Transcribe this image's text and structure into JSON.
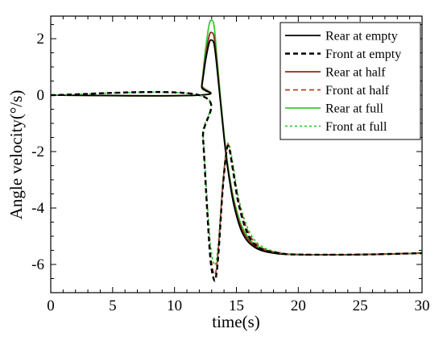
{
  "chart_data": {
    "type": "line",
    "title": "",
    "xlabel": "time(s)",
    "ylabel": "Angle velocity(°/s)",
    "xlim": [
      0,
      30
    ],
    "ylim": [
      -7,
      2.8
    ],
    "xticks": [
      "0",
      "5",
      "10",
      "15",
      "20",
      "25",
      "30"
    ],
    "yticks": [
      "2",
      "0",
      "-2",
      "-4",
      "-6"
    ],
    "legend_position": "top-right",
    "series": [
      {
        "name": "Rear at empty",
        "color": "#000000",
        "dash": "solid",
        "x": [
          0,
          12,
          12.2,
          12.5,
          12.8,
          13.0,
          13.2,
          13.4,
          13.7,
          14.0,
          14.3,
          14.8,
          15.5,
          16.5,
          18,
          20,
          25,
          30
        ],
        "y": [
          0,
          0,
          0.3,
          1.2,
          1.85,
          1.95,
          1.8,
          1.1,
          -0.2,
          -1.5,
          -2.6,
          -3.9,
          -4.9,
          -5.4,
          -5.6,
          -5.65,
          -5.65,
          -5.6
        ]
      },
      {
        "name": "Front at empty",
        "color": "#000000",
        "dash": "dashed",
        "x": [
          0,
          12,
          12.3,
          12.6,
          12.9,
          13.2,
          13.4,
          13.6,
          13.9,
          14.2,
          14.4,
          14.7,
          15.2,
          16,
          17,
          18.5,
          20,
          25,
          30
        ],
        "y": [
          0,
          0,
          -1.5,
          -3.8,
          -5.8,
          -6.55,
          -6.3,
          -5.3,
          -3.3,
          -2.0,
          -1.85,
          -2.6,
          -3.9,
          -5.0,
          -5.45,
          -5.6,
          -5.65,
          -5.65,
          -5.6
        ]
      },
      {
        "name": "Rear at half",
        "color": "#8b2e16",
        "dash": "solid",
        "x": [
          0,
          12,
          12.2,
          12.5,
          12.8,
          13.0,
          13.2,
          13.4,
          13.7,
          14.0,
          14.3,
          14.8,
          15.5,
          16.5,
          18,
          20,
          25,
          30
        ],
        "y": [
          0,
          0,
          0.35,
          1.35,
          2.1,
          2.22,
          2.05,
          1.25,
          -0.15,
          -1.45,
          -2.55,
          -3.8,
          -4.8,
          -5.35,
          -5.58,
          -5.65,
          -5.65,
          -5.6
        ]
      },
      {
        "name": "Front at half",
        "color": "#b0452a",
        "dash": "dashed",
        "x": [
          0,
          12,
          12.3,
          12.6,
          12.9,
          13.2,
          13.4,
          13.6,
          13.9,
          14.2,
          14.4,
          14.7,
          15.2,
          16,
          17,
          18.5,
          20,
          25,
          30
        ],
        "y": [
          0,
          0,
          -1.5,
          -3.7,
          -5.6,
          -6.35,
          -6.1,
          -5.1,
          -3.2,
          -1.95,
          -1.8,
          -2.5,
          -3.8,
          -4.9,
          -5.4,
          -5.6,
          -5.65,
          -5.65,
          -5.6
        ]
      },
      {
        "name": "Rear at full",
        "color": "#33cc33",
        "dash": "solid",
        "x": [
          0,
          12,
          12.2,
          12.5,
          12.8,
          13.0,
          13.2,
          13.4,
          13.7,
          14.0,
          14.3,
          14.8,
          15.5,
          16.5,
          18,
          20,
          25,
          30
        ],
        "y": [
          0,
          0,
          0.4,
          1.6,
          2.5,
          2.65,
          2.45,
          1.5,
          0.0,
          -1.35,
          -2.45,
          -3.7,
          -4.7,
          -5.3,
          -5.55,
          -5.65,
          -5.65,
          -5.6
        ]
      },
      {
        "name": "Front at full",
        "color": "#33cc33",
        "dash": "dotted",
        "x": [
          0,
          12,
          12.3,
          12.6,
          12.9,
          13.2,
          13.4,
          13.6,
          13.9,
          14.2,
          14.4,
          14.7,
          15.2,
          16,
          17,
          18.5,
          20,
          25,
          30
        ],
        "y": [
          0,
          0,
          -1.4,
          -3.5,
          -5.3,
          -6.0,
          -5.8,
          -4.9,
          -3.1,
          -1.9,
          -1.75,
          -2.4,
          -3.7,
          -4.8,
          -5.35,
          -5.58,
          -5.65,
          -5.65,
          -5.6
        ]
      }
    ]
  }
}
